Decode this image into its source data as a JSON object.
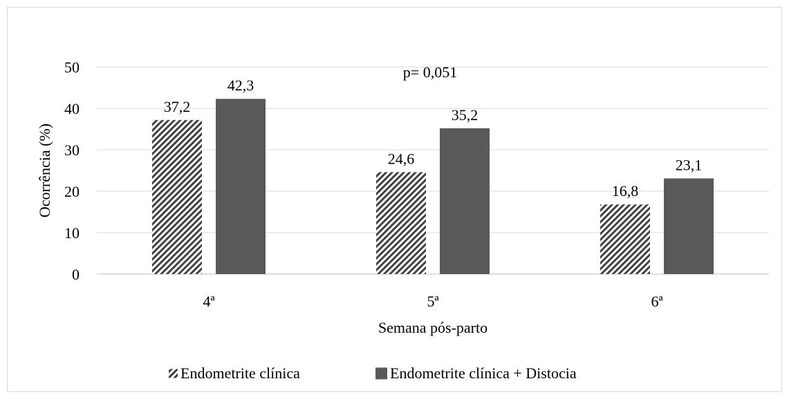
{
  "chart_data": {
    "type": "bar",
    "categories": [
      "4ª",
      "5ª",
      "6ª"
    ],
    "series": [
      {
        "name": "Endometrite clínica",
        "values": [
          37.2,
          24.6,
          16.8
        ],
        "value_labels": [
          "37,2",
          "24,6",
          "16,8"
        ],
        "fill": "hatched"
      },
      {
        "name": "Endometrite clínica + Distocia",
        "values": [
          42.3,
          35.2,
          23.1
        ],
        "value_labels": [
          "42,3",
          "35,2",
          "23,1"
        ],
        "fill": "solid"
      }
    ],
    "title": "",
    "xlabel": "Semana pós-parto",
    "ylabel": "Ocorrência (%)",
    "ylim": [
      0,
      50
    ],
    "yticks": [
      0,
      10,
      20,
      30,
      40,
      50
    ],
    "grid": true,
    "legend_position": "bottom",
    "annotations": [
      "p= 0,051"
    ]
  },
  "colors": {
    "solid_bar": "#595959",
    "hatch_dark": "#404040",
    "gridline": "#d9d9d9",
    "axis": "#bfbfbf"
  }
}
